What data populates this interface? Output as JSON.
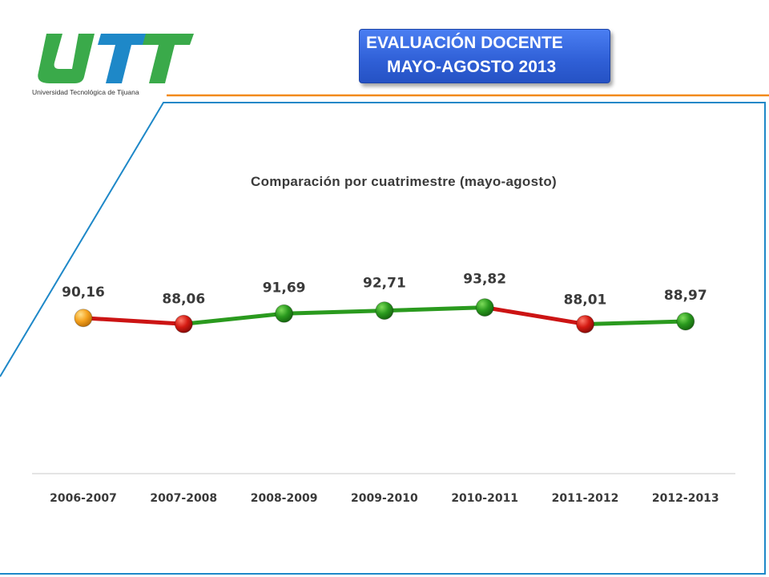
{
  "logo": {
    "wordmark": "UTT",
    "caption": "Universidad Tecnológica de Tijuana",
    "colors": {
      "primary": "#3aaa4a",
      "secondary": "#1e88c8",
      "orange": "#f28a1a"
    }
  },
  "header": {
    "title_line1": "EVALUACIÓN DOCENTE",
    "title_line2": "MAYO-AGOSTO 2013"
  },
  "chart_data": {
    "type": "line",
    "title": "Comparación por cuatrimestre (mayo-agosto)",
    "categories": [
      "2006-2007",
      "2007-2008",
      "2008-2009",
      "2009-2010",
      "2010-2011",
      "2011-2012",
      "2012-2013"
    ],
    "values": [
      90.16,
      88.06,
      91.69,
      92.71,
      93.82,
      88.01,
      88.97
    ],
    "value_labels": [
      "90,16",
      "88,06",
      "91,69",
      "92,71",
      "93,82",
      "88,01",
      "88,97"
    ],
    "point_status": [
      "neutral",
      "down",
      "up",
      "up",
      "up",
      "down",
      "up"
    ],
    "segment_status": [
      "down",
      "up",
      "up",
      "up",
      "down",
      "up"
    ],
    "colors": {
      "up": "#2a9a1e",
      "down": "#cc1414",
      "neutral": "#f5a21e"
    },
    "grid": false,
    "legend": "none"
  }
}
